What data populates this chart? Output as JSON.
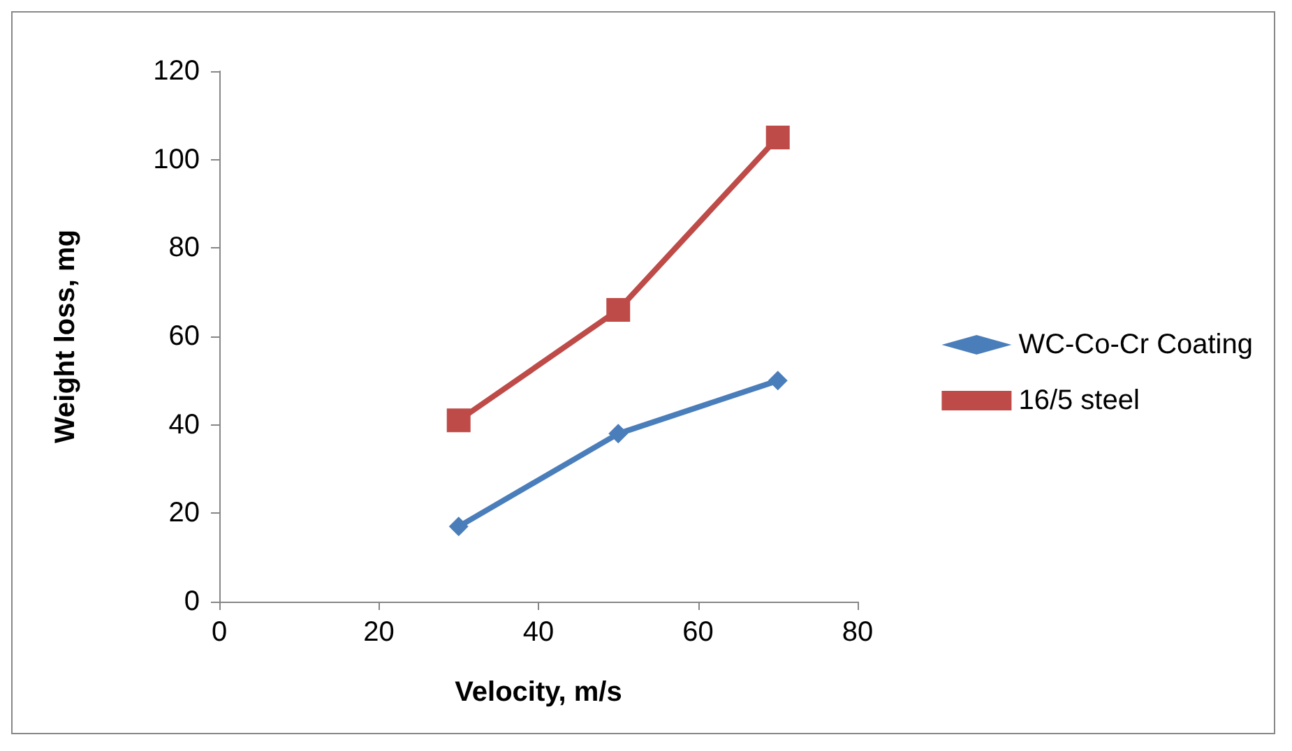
{
  "chart_data": {
    "type": "line",
    "xlabel": "Velocity, m/s",
    "ylabel": "Weight loss, mg",
    "x": [
      30,
      50,
      70
    ],
    "series": [
      {
        "name": "WC-Co-Cr Coating",
        "color": "#4a7ebb",
        "marker": "diamond",
        "values": [
          17,
          38,
          50
        ]
      },
      {
        "name": "16/5 steel",
        "color": "#be4b48",
        "marker": "square",
        "values": [
          41,
          66,
          105
        ]
      }
    ],
    "xlim": [
      0,
      80
    ],
    "xticks": [
      0,
      20,
      40,
      60,
      80
    ],
    "ylim": [
      0,
      120
    ],
    "yticks": [
      0,
      20,
      40,
      60,
      80,
      100,
      120
    ],
    "grid": false,
    "legend": "right",
    "line_style": "solid"
  }
}
